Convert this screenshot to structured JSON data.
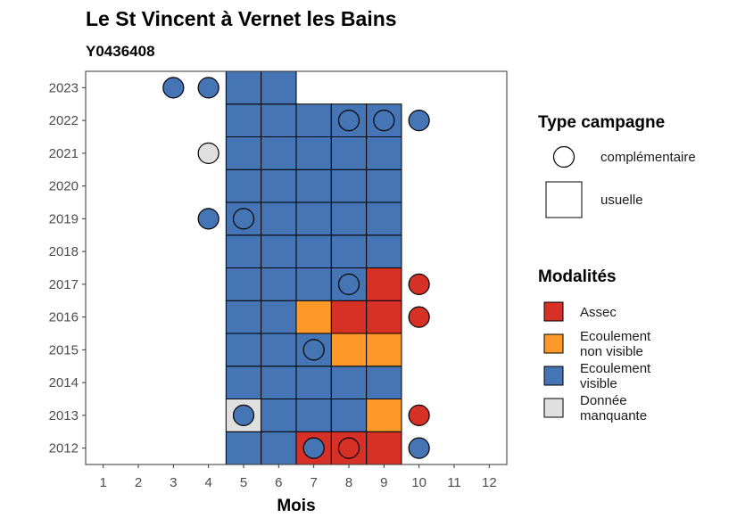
{
  "chart_data": {
    "type": "heatmap",
    "title": "Le St Vincent à Vernet les Bains",
    "subtitle": "Y0436408",
    "xlabel": "Mois",
    "ylabel": "",
    "x_ticks": [
      "1",
      "2",
      "3",
      "4",
      "5",
      "6",
      "7",
      "8",
      "9",
      "10",
      "11",
      "12"
    ],
    "y_ticks": [
      "2012",
      "2013",
      "2014",
      "2015",
      "2016",
      "2017",
      "2018",
      "2019",
      "2020",
      "2021",
      "2022",
      "2023"
    ],
    "xlim": [
      0.5,
      12.5
    ],
    "ylim": [
      2011.5,
      2023.5
    ],
    "grid": false,
    "legend_position": "right",
    "colors": {
      "Assec": "#d73027",
      "Ecoulement non visible": "#fe9929",
      "Ecoulement visible": "#4575b4",
      "Donnée manquante": "#e0e0e0"
    },
    "legend_shape": {
      "title": "Type campagne",
      "items": [
        {
          "label": "complémentaire",
          "shape": "circle"
        },
        {
          "label": "usuelle",
          "shape": "square"
        }
      ]
    },
    "legend_fill": {
      "title": "Modalités",
      "items": [
        {
          "key": "Assec",
          "lines": [
            "Assec"
          ]
        },
        {
          "key": "Ecoulement non visible",
          "lines": [
            "Ecoulement",
            "non visible"
          ]
        },
        {
          "key": "Ecoulement visible",
          "lines": [
            "Ecoulement",
            "visible"
          ]
        },
        {
          "key": "Donnée manquante",
          "lines": [
            "Donnée",
            "manquante"
          ]
        }
      ]
    },
    "usuelle": [
      {
        "year": 2012,
        "month": 5,
        "modalite": "Ecoulement visible"
      },
      {
        "year": 2012,
        "month": 6,
        "modalite": "Ecoulement visible"
      },
      {
        "year": 2012,
        "month": 7,
        "modalite": "Assec"
      },
      {
        "year": 2012,
        "month": 8,
        "modalite": "Assec"
      },
      {
        "year": 2012,
        "month": 9,
        "modalite": "Assec"
      },
      {
        "year": 2013,
        "month": 5,
        "modalite": "Donnée manquante"
      },
      {
        "year": 2013,
        "month": 6,
        "modalite": "Ecoulement visible"
      },
      {
        "year": 2013,
        "month": 7,
        "modalite": "Ecoulement visible"
      },
      {
        "year": 2013,
        "month": 8,
        "modalite": "Ecoulement visible"
      },
      {
        "year": 2013,
        "month": 9,
        "modalite": "Ecoulement non visible"
      },
      {
        "year": 2014,
        "month": 5,
        "modalite": "Ecoulement visible"
      },
      {
        "year": 2014,
        "month": 6,
        "modalite": "Ecoulement visible"
      },
      {
        "year": 2014,
        "month": 7,
        "modalite": "Ecoulement visible"
      },
      {
        "year": 2014,
        "month": 8,
        "modalite": "Ecoulement visible"
      },
      {
        "year": 2014,
        "month": 9,
        "modalite": "Ecoulement visible"
      },
      {
        "year": 2015,
        "month": 5,
        "modalite": "Ecoulement visible"
      },
      {
        "year": 2015,
        "month": 6,
        "modalite": "Ecoulement visible"
      },
      {
        "year": 2015,
        "month": 7,
        "modalite": "Ecoulement visible"
      },
      {
        "year": 2015,
        "month": 8,
        "modalite": "Ecoulement non visible"
      },
      {
        "year": 2015,
        "month": 9,
        "modalite": "Ecoulement non visible"
      },
      {
        "year": 2016,
        "month": 5,
        "modalite": "Ecoulement visible"
      },
      {
        "year": 2016,
        "month": 6,
        "modalite": "Ecoulement visible"
      },
      {
        "year": 2016,
        "month": 7,
        "modalite": "Ecoulement non visible"
      },
      {
        "year": 2016,
        "month": 8,
        "modalite": "Assec"
      },
      {
        "year": 2016,
        "month": 9,
        "modalite": "Assec"
      },
      {
        "year": 2017,
        "month": 5,
        "modalite": "Ecoulement visible"
      },
      {
        "year": 2017,
        "month": 6,
        "modalite": "Ecoulement visible"
      },
      {
        "year": 2017,
        "month": 7,
        "modalite": "Ecoulement visible"
      },
      {
        "year": 2017,
        "month": 8,
        "modalite": "Ecoulement visible"
      },
      {
        "year": 2017,
        "month": 9,
        "modalite": "Assec"
      },
      {
        "year": 2018,
        "month": 5,
        "modalite": "Ecoulement visible"
      },
      {
        "year": 2018,
        "month": 6,
        "modalite": "Ecoulement visible"
      },
      {
        "year": 2018,
        "month": 7,
        "modalite": "Ecoulement visible"
      },
      {
        "year": 2018,
        "month": 8,
        "modalite": "Ecoulement visible"
      },
      {
        "year": 2018,
        "month": 9,
        "modalite": "Ecoulement visible"
      },
      {
        "year": 2019,
        "month": 5,
        "modalite": "Ecoulement visible"
      },
      {
        "year": 2019,
        "month": 6,
        "modalite": "Ecoulement visible"
      },
      {
        "year": 2019,
        "month": 7,
        "modalite": "Ecoulement visible"
      },
      {
        "year": 2019,
        "month": 8,
        "modalite": "Ecoulement visible"
      },
      {
        "year": 2019,
        "month": 9,
        "modalite": "Ecoulement visible"
      },
      {
        "year": 2020,
        "month": 5,
        "modalite": "Ecoulement visible"
      },
      {
        "year": 2020,
        "month": 6,
        "modalite": "Ecoulement visible"
      },
      {
        "year": 2020,
        "month": 7,
        "modalite": "Ecoulement visible"
      },
      {
        "year": 2020,
        "month": 8,
        "modalite": "Ecoulement visible"
      },
      {
        "year": 2020,
        "month": 9,
        "modalite": "Ecoulement visible"
      },
      {
        "year": 2021,
        "month": 5,
        "modalite": "Ecoulement visible"
      },
      {
        "year": 2021,
        "month": 6,
        "modalite": "Ecoulement visible"
      },
      {
        "year": 2021,
        "month": 7,
        "modalite": "Ecoulement visible"
      },
      {
        "year": 2021,
        "month": 8,
        "modalite": "Ecoulement visible"
      },
      {
        "year": 2021,
        "month": 9,
        "modalite": "Ecoulement visible"
      },
      {
        "year": 2022,
        "month": 5,
        "modalite": "Ecoulement visible"
      },
      {
        "year": 2022,
        "month": 6,
        "modalite": "Ecoulement visible"
      },
      {
        "year": 2022,
        "month": 7,
        "modalite": "Ecoulement visible"
      },
      {
        "year": 2022,
        "month": 8,
        "modalite": "Ecoulement visible"
      },
      {
        "year": 2022,
        "month": 9,
        "modalite": "Ecoulement visible"
      },
      {
        "year": 2023,
        "month": 5,
        "modalite": "Ecoulement visible"
      },
      {
        "year": 2023,
        "month": 6,
        "modalite": "Ecoulement visible"
      }
    ],
    "complementaire": [
      {
        "year": 2012,
        "month": 7,
        "modalite": "Ecoulement visible"
      },
      {
        "year": 2012,
        "month": 8,
        "modalite": "Assec"
      },
      {
        "year": 2012,
        "month": 10,
        "modalite": "Ecoulement visible"
      },
      {
        "year": 2013,
        "month": 5,
        "modalite": "Ecoulement visible"
      },
      {
        "year": 2013,
        "month": 10,
        "modalite": "Assec"
      },
      {
        "year": 2015,
        "month": 7,
        "modalite": "Ecoulement visible"
      },
      {
        "year": 2016,
        "month": 10,
        "modalite": "Assec"
      },
      {
        "year": 2017,
        "month": 8,
        "modalite": "Ecoulement visible"
      },
      {
        "year": 2017,
        "month": 10,
        "modalite": "Assec"
      },
      {
        "year": 2019,
        "month": 4,
        "modalite": "Ecoulement visible"
      },
      {
        "year": 2019,
        "month": 5,
        "modalite": "Ecoulement visible"
      },
      {
        "year": 2021,
        "month": 4,
        "modalite": "Donnée manquante"
      },
      {
        "year": 2022,
        "month": 8,
        "modalite": "Ecoulement visible"
      },
      {
        "year": 2022,
        "month": 9,
        "modalite": "Ecoulement visible"
      },
      {
        "year": 2022,
        "month": 10,
        "modalite": "Ecoulement visible"
      },
      {
        "year": 2023,
        "month": 3,
        "modalite": "Ecoulement visible"
      },
      {
        "year": 2023,
        "month": 4,
        "modalite": "Ecoulement visible"
      }
    ]
  }
}
